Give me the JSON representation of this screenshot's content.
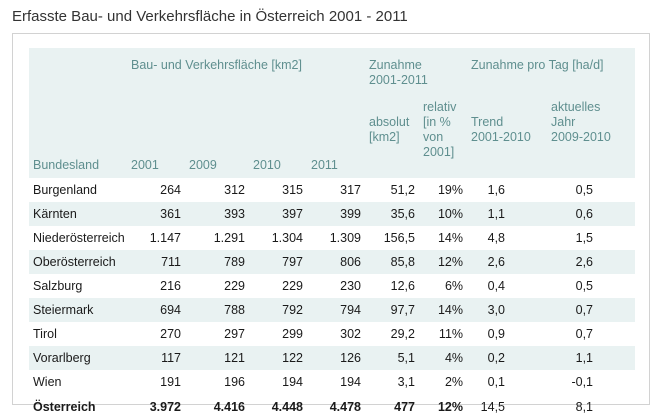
{
  "title": "Erfasste Bau- und Verkehrsfläche in Österreich 2001 - 2011",
  "header": {
    "group_area": "Bau- und Verkehrsfläche [km2]",
    "group_increase_line1": "Zunahme",
    "group_increase_line2": "2001-2011",
    "group_per_day": "Zunahme pro Tag [ha/d]",
    "col_state": "Bundesland",
    "col_2001": "2001",
    "col_2009": "2009",
    "col_2010": "2010",
    "col_2011": "2011",
    "col_abs_line1": "absolut",
    "col_abs_line2": "[km2]",
    "col_rel_line1": "relativ",
    "col_rel_line2": "[in %",
    "col_rel_line3": "von",
    "col_rel_line4": "2001]",
    "col_trend_line1": "Trend",
    "col_trend_line2": "2001-2010",
    "col_cur_line1": "aktuelles",
    "col_cur_line2": "Jahr",
    "col_cur_line3": "2009-2010"
  },
  "rows": [
    {
      "state": "Burgenland",
      "y2001": "264",
      "y2009": "312",
      "y2010": "315",
      "y2011": "317",
      "abs": "51,2",
      "rel": "19%",
      "trend": "1,6",
      "current": "0,5"
    },
    {
      "state": "Kärnten",
      "y2001": "361",
      "y2009": "393",
      "y2010": "397",
      "y2011": "399",
      "abs": "35,6",
      "rel": "10%",
      "trend": "1,1",
      "current": "0,6"
    },
    {
      "state": "Niederösterreich",
      "y2001": "1.147",
      "y2009": "1.291",
      "y2010": "1.304",
      "y2011": "1.309",
      "abs": "156,5",
      "rel": "14%",
      "trend": "4,8",
      "current": "1,5"
    },
    {
      "state": "Oberösterreich",
      "y2001": "711",
      "y2009": "789",
      "y2010": "797",
      "y2011": "806",
      "abs": "85,8",
      "rel": "12%",
      "trend": "2,6",
      "current": "2,6"
    },
    {
      "state": "Salzburg",
      "y2001": "216",
      "y2009": "229",
      "y2010": "229",
      "y2011": "230",
      "abs": "12,6",
      "rel": "6%",
      "trend": "0,4",
      "current": "0,5"
    },
    {
      "state": "Steiermark",
      "y2001": "694",
      "y2009": "788",
      "y2010": "792",
      "y2011": "794",
      "abs": "97,7",
      "rel": "14%",
      "trend": "3,0",
      "current": "0,7"
    },
    {
      "state": "Tirol",
      "y2001": "270",
      "y2009": "297",
      "y2010": "299",
      "y2011": "302",
      "abs": "29,2",
      "rel": "11%",
      "trend": "0,9",
      "current": "0,7"
    },
    {
      "state": "Vorarlberg",
      "y2001": "117",
      "y2009": "121",
      "y2010": "122",
      "y2011": "126",
      "abs": "5,1",
      "rel": "4%",
      "trend": "0,2",
      "current": "1,1"
    },
    {
      "state": "Wien",
      "y2001": "191",
      "y2009": "196",
      "y2010": "194",
      "y2011": "194",
      "abs": "3,1",
      "rel": "2%",
      "trend": "0,1",
      "current": "-0,1"
    }
  ],
  "total": {
    "state": "Österreich",
    "y2001": "3.972",
    "y2009": "4.416",
    "y2010": "4.448",
    "y2011": "4.478",
    "abs": "477",
    "rel": "12%",
    "trend": "14,5",
    "current": "8,1"
  },
  "colors": {
    "header_bg": "#e9f2f2",
    "header_text": "#5f8f8f",
    "alt_row_bg": "#e9f2f2",
    "border": "#d2d2d2"
  }
}
